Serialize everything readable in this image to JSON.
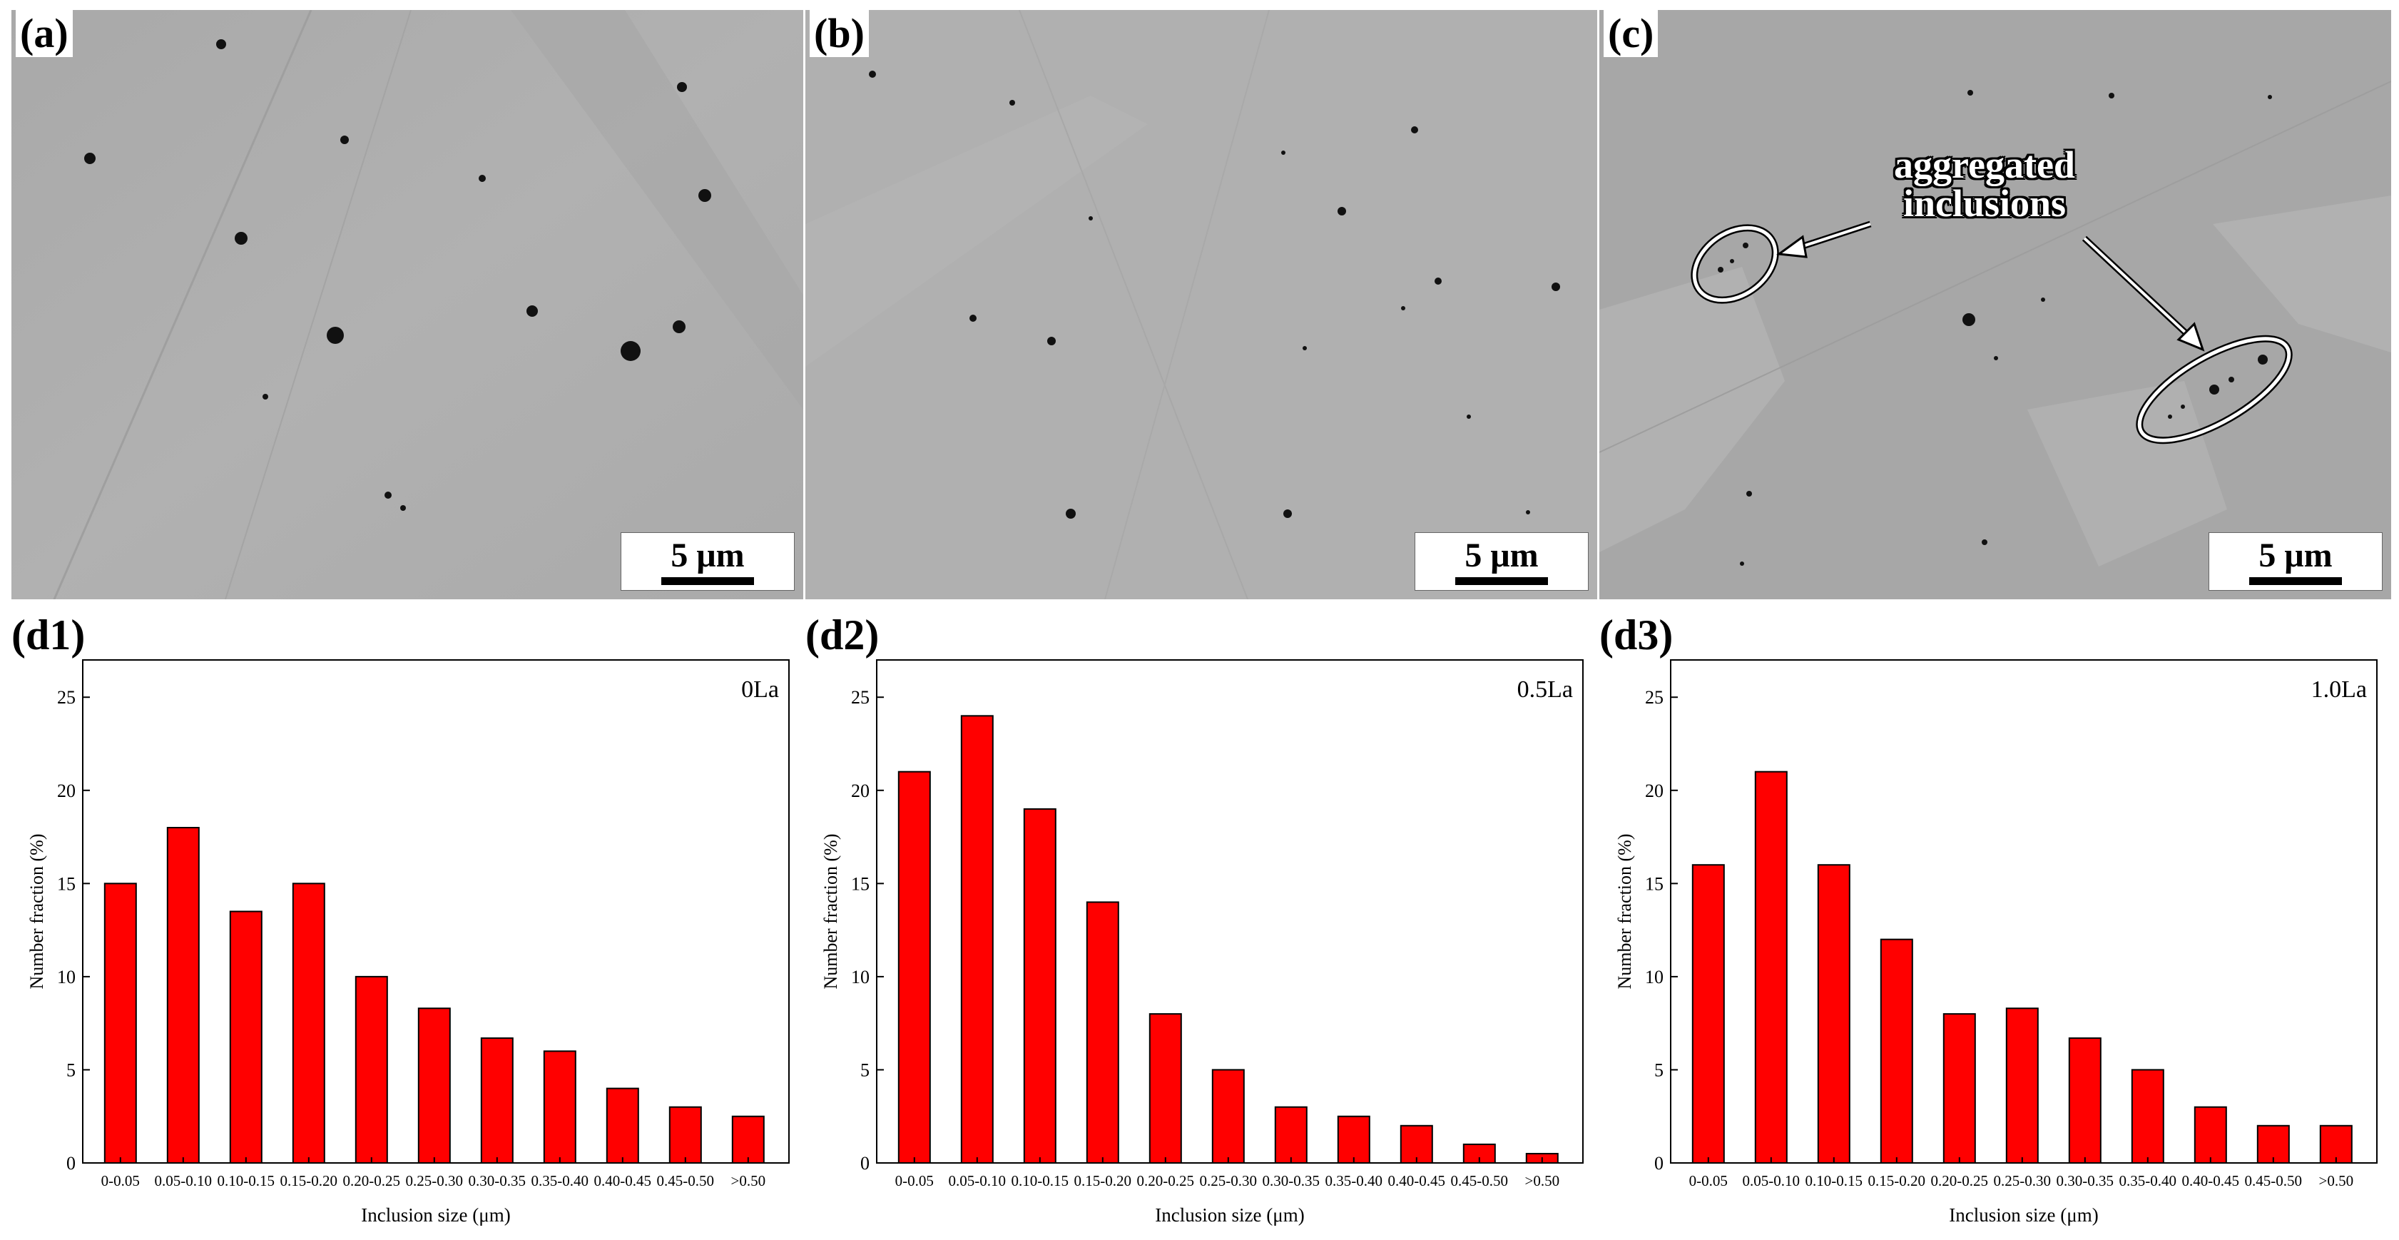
{
  "micrographs": [
    {
      "label": "(a)",
      "scale_label": "5 μm"
    },
    {
      "label": "(b)",
      "scale_label": "5 μm"
    },
    {
      "label": "(c)",
      "scale_label": "5 μm",
      "annotation": [
        "aggregated",
        "inclusions"
      ]
    }
  ],
  "chart_data": [
    {
      "type": "bar",
      "panel_label": "(d1)",
      "series_label": "0La",
      "xlabel": "Inclusion size (μm)",
      "ylabel": "Number fraction (%)",
      "ylim": [
        0,
        27
      ],
      "yticks": [
        0,
        5,
        10,
        15,
        20,
        25
      ],
      "categories": [
        "0-0.05",
        "0.05-0.10",
        "0.10-0.15",
        "0.15-0.20",
        "0.20-0.25",
        "0.25-0.30",
        "0.30-0.35",
        "0.35-0.40",
        "0.40-0.45",
        "0.45-0.50",
        ">0.50"
      ],
      "values": [
        15,
        18,
        13.5,
        15,
        10,
        8.3,
        6.7,
        6,
        4,
        3,
        2.5
      ],
      "bar_color": "#ff0000"
    },
    {
      "type": "bar",
      "panel_label": "(d2)",
      "series_label": "0.5La",
      "xlabel": "Inclusion size (μm)",
      "ylabel": "Number fraction (%)",
      "ylim": [
        0,
        27
      ],
      "yticks": [
        0,
        5,
        10,
        15,
        20,
        25
      ],
      "categories": [
        "0-0.05",
        "0.05-0.10",
        "0.10-0.15",
        "0.15-0.20",
        "0.20-0.25",
        "0.25-0.30",
        "0.30-0.35",
        "0.35-0.40",
        "0.40-0.45",
        "0.45-0.50",
        ">0.50"
      ],
      "values": [
        21,
        24,
        19,
        14,
        8,
        5,
        3,
        2.5,
        2,
        1,
        0.5
      ],
      "bar_color": "#ff0000"
    },
    {
      "type": "bar",
      "panel_label": "(d3)",
      "series_label": "1.0La",
      "xlabel": "Inclusion size (μm)",
      "ylabel": "Number fraction (%)",
      "ylim": [
        0,
        27
      ],
      "yticks": [
        0,
        5,
        10,
        15,
        20,
        25
      ],
      "categories": [
        "0-0.05",
        "0.05-0.10",
        "0.10-0.15",
        "0.15-0.20",
        "0.20-0.25",
        "0.25-0.30",
        "0.30-0.35",
        "0.35-0.40",
        "0.40-0.45",
        "0.45-0.50",
        ">0.50"
      ],
      "values": [
        16,
        21,
        16,
        12,
        8,
        8.3,
        6.7,
        5,
        3,
        2,
        2
      ],
      "bar_color": "#ff0000"
    }
  ]
}
